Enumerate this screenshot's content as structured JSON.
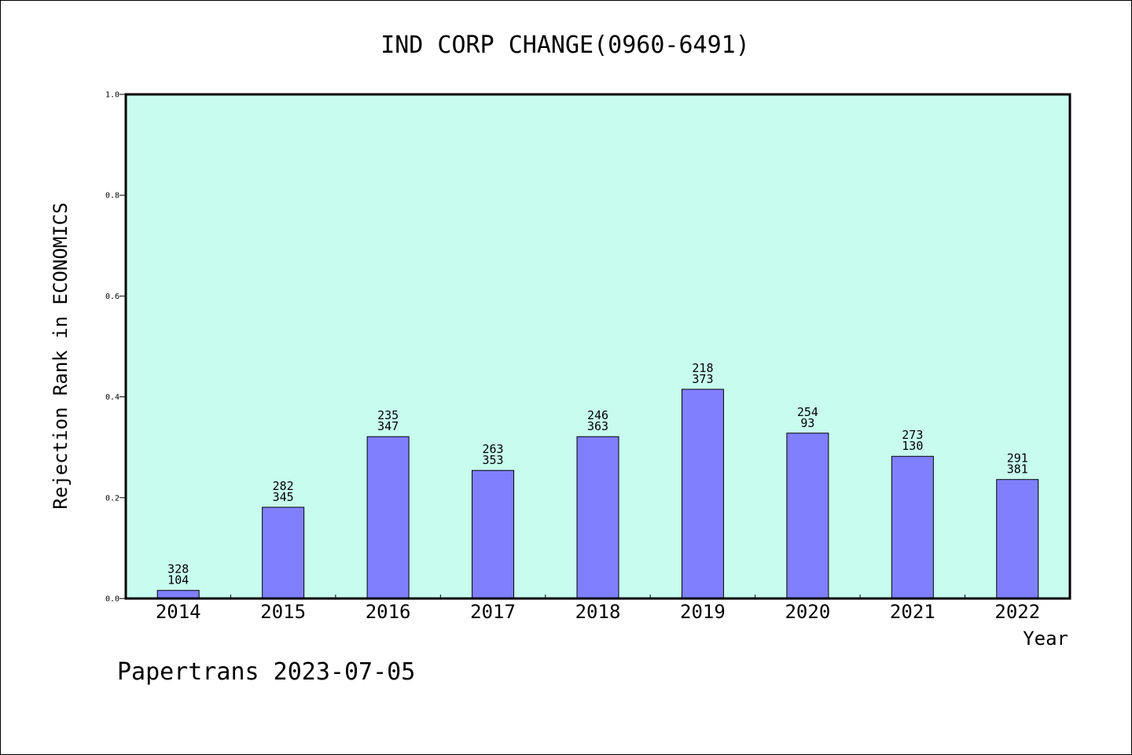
{
  "chart_data": {
    "type": "bar",
    "title": "IND CORP CHANGE(0960-6491)",
    "xlabel": "Year",
    "ylabel": "Rejection Rank in ECONOMICS",
    "ylim": [
      0,
      1.0
    ],
    "yticks": [
      "0.0",
      "0.2",
      "0.4",
      "0.6",
      "0.8",
      "1.0"
    ],
    "categories": [
      "2014",
      "2015",
      "2016",
      "2017",
      "2018",
      "2019",
      "2020",
      "2021",
      "2022"
    ],
    "values": [
      0.016,
      0.181,
      0.321,
      0.254,
      0.321,
      0.415,
      0.328,
      0.282,
      0.236
    ],
    "bar_labels": [
      [
        "328",
        "104"
      ],
      [
        "282",
        "345"
      ],
      [
        "235",
        "347"
      ],
      [
        "263",
        "353"
      ],
      [
        "246",
        "363"
      ],
      [
        "218",
        "373"
      ],
      [
        "254",
        "93"
      ],
      [
        "273",
        "130"
      ],
      [
        "291",
        "381"
      ]
    ],
    "grid": false,
    "colors": {
      "plot_background": "#c8fcee",
      "bar": "#8080ff",
      "bar_edge": "#000000"
    }
  },
  "footer": "Papertrans 2023-07-05"
}
